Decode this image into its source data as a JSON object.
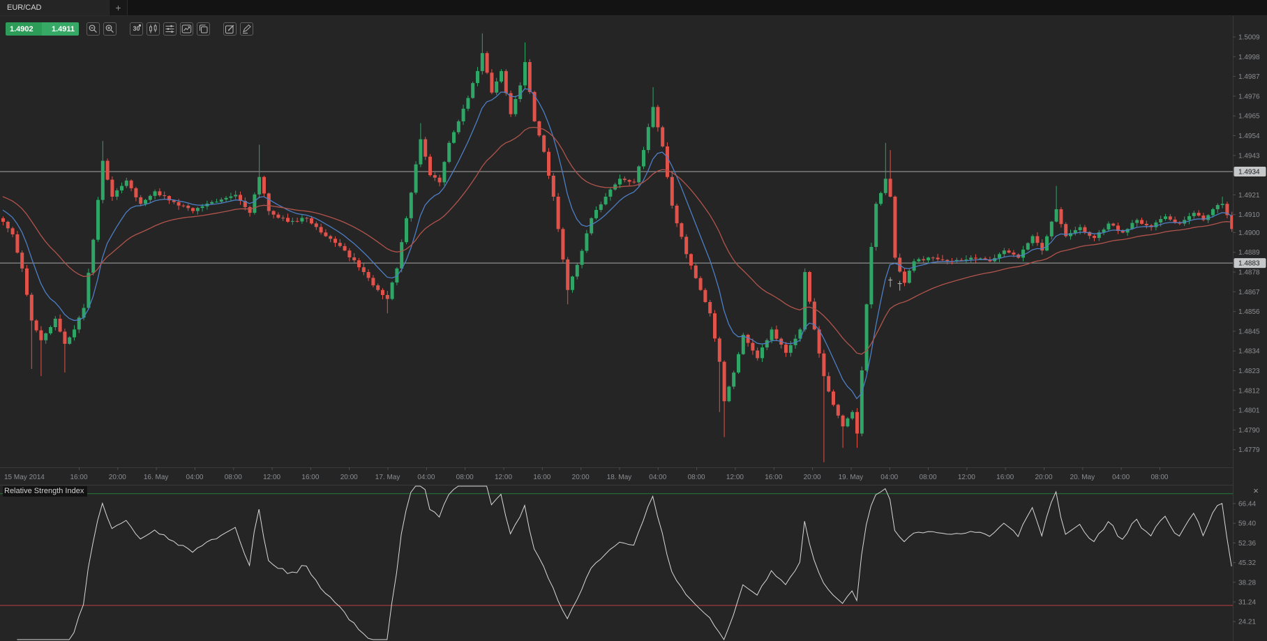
{
  "tabs": {
    "items": [
      {
        "label": "EUR/CAD",
        "active": true
      }
    ],
    "new_tab_label": "+"
  },
  "toolbar": {
    "bid": "1.4902",
    "ask": "1.4911",
    "timeframe_label": "30",
    "buttons": [
      "zoom-out",
      "zoom-in",
      "timeframe-30",
      "chart-style-candles",
      "indicator-settings",
      "chart-layout",
      "duplicate-chart",
      "edit-annotations",
      "draw-marker"
    ]
  },
  "rsi": {
    "title": "Relative Strength Index",
    "close_label": "×"
  },
  "chart_data": {
    "type": "candlestick",
    "symbol": "EUR/CAD",
    "timeframe_minutes": 30,
    "visible_range": {
      "start": "15 May 2014",
      "end": "20 May 2014 08:00"
    },
    "candle_count": 260,
    "colors": {
      "up": "#2fa566",
      "down": "#e0534a",
      "doji": "#a8a8a8",
      "ma_fast": "#4d7fc4",
      "ma_slow": "#b2544b",
      "price_line": "#c8c8c8",
      "price_label_bg": "#c6c8ca",
      "price_label_text": "#1b1c1d",
      "rsi_line": "#d9d9d9",
      "rsi_overbought": "#217a36",
      "rsi_oversold": "#c04040",
      "axis_text": "#8b8d90",
      "separator": "#3a3a3a",
      "background": "#252526"
    },
    "price_lines": [
      "1.4934",
      "1.4883"
    ],
    "price_axis_ticks": [
      "1.5009",
      "1.4998",
      "1.4987",
      "1.4976",
      "1.4965",
      "1.4954",
      "1.4943",
      "1.4921",
      "1.4910",
      "1.4900",
      "1.4889",
      "1.4878",
      "1.4867",
      "1.4856",
      "1.4845",
      "1.4834",
      "1.4823",
      "1.4812",
      "1.4801",
      "1.4790",
      "1.4779"
    ],
    "time_labels": [
      "15 May 2014",
      "16:00",
      "20:00",
      "16. May",
      "04:00",
      "08:00",
      "12:00",
      "16:00",
      "20:00",
      "17. May",
      "04:00",
      "08:00",
      "12:00",
      "16:00",
      "20:00",
      "18. May",
      "04:00",
      "08:00",
      "12:00",
      "16:00",
      "20:00",
      "19. May",
      "04:00",
      "08:00",
      "12:00",
      "16:00",
      "20:00",
      "20. May",
      "04:00",
      "08:00"
    ],
    "rsi_ticks": [
      "66.44",
      "59.40",
      "52.36",
      "45.32",
      "38.28",
      "31.24",
      "24.21"
    ],
    "rsi_levels": {
      "overbought": 70,
      "oversold": 30
    },
    "indicator": {
      "name": "Relative Strength Index",
      "period": 14
    },
    "overlays": [
      {
        "name": "fast-ma",
        "period": 10,
        "seed": 1.4914
      },
      {
        "name": "slow-ma",
        "period": 30,
        "seed": 1.4921
      }
    ],
    "close_path": [
      [
        0,
        1.4906
      ],
      [
        2,
        1.4899
      ],
      [
        4,
        1.488
      ],
      [
        6,
        1.4851
      ],
      [
        8,
        1.484
      ],
      [
        11,
        1.4852
      ],
      [
        13,
        1.4838
      ],
      [
        15,
        1.4846
      ],
      [
        17,
        1.4858
      ],
      [
        19,
        1.4896
      ],
      [
        21,
        1.494
      ],
      [
        23,
        1.492
      ],
      [
        26,
        1.4929
      ],
      [
        29,
        1.4916
      ],
      [
        32,
        1.4923
      ],
      [
        36,
        1.4917
      ],
      [
        40,
        1.4912
      ],
      [
        44,
        1.4917
      ],
      [
        49,
        1.4921
      ],
      [
        52,
        1.4911
      ],
      [
        54,
        1.4931
      ],
      [
        56,
        1.4912
      ],
      [
        60,
        1.4906
      ],
      [
        64,
        1.4908
      ],
      [
        68,
        1.4898
      ],
      [
        72,
        1.489
      ],
      [
        76,
        1.4878
      ],
      [
        79,
        1.4868
      ],
      [
        81,
        1.4863
      ],
      [
        83,
        1.488
      ],
      [
        85,
        1.4908
      ],
      [
        87,
        1.4938
      ],
      [
        88,
        1.4952
      ],
      [
        90,
        1.4932
      ],
      [
        92,
        1.4928
      ],
      [
        94,
        1.495
      ],
      [
        96,
        1.4962
      ],
      [
        98,
        1.4975
      ],
      [
        100,
        1.499
      ],
      [
        101,
        1.5
      ],
      [
        103,
        1.4978
      ],
      [
        105,
        1.499
      ],
      [
        107,
        1.4966
      ],
      [
        109,
        1.4982
      ],
      [
        110,
        1.4995
      ],
      [
        112,
        1.4962
      ],
      [
        114,
        1.4945
      ],
      [
        116,
        1.492
      ],
      [
        118,
        1.4885
      ],
      [
        119,
        1.4868
      ],
      [
        121,
        1.4882
      ],
      [
        124,
        1.4908
      ],
      [
        127,
        1.492
      ],
      [
        130,
        1.493
      ],
      [
        133,
        1.4928
      ],
      [
        135,
        1.4946
      ],
      [
        137,
        1.497
      ],
      [
        139,
        1.4948
      ],
      [
        141,
        1.4915
      ],
      [
        144,
        1.4888
      ],
      [
        147,
        1.4868
      ],
      [
        149,
        1.4855
      ],
      [
        151,
        1.4828
      ],
      [
        152,
        1.4806
      ],
      [
        154,
        1.4822
      ],
      [
        156,
        1.4843
      ],
      [
        159,
        1.483
      ],
      [
        162,
        1.4846
      ],
      [
        165,
        1.4833
      ],
      [
        168,
        1.4846
      ],
      [
        169,
        1.4878
      ],
      [
        171,
        1.4846
      ],
      [
        173,
        1.482
      ],
      [
        175,
        1.4804
      ],
      [
        177,
        1.4792
      ],
      [
        179,
        1.48
      ],
      [
        180,
        1.4788
      ],
      [
        182,
        1.486
      ],
      [
        183,
        1.4892
      ],
      [
        184,
        1.4916
      ],
      [
        185,
        1.4922
      ],
      [
        186,
        1.493
      ],
      [
        187,
        1.492
      ],
      [
        188,
        1.4886
      ],
      [
        190,
        1.4872
      ],
      [
        192,
        1.4884
      ],
      [
        196,
        1.4886
      ],
      [
        200,
        1.4884
      ],
      [
        204,
        1.4886
      ],
      [
        208,
        1.4884
      ],
      [
        211,
        1.489
      ],
      [
        214,
        1.4886
      ],
      [
        217,
        1.4898
      ],
      [
        219,
        1.489
      ],
      [
        222,
        1.4913
      ],
      [
        224,
        1.4898
      ],
      [
        227,
        1.4903
      ],
      [
        230,
        1.4897
      ],
      [
        233,
        1.4905
      ],
      [
        236,
        1.49
      ],
      [
        239,
        1.4907
      ],
      [
        242,
        1.4903
      ],
      [
        245,
        1.4909
      ],
      [
        248,
        1.4905
      ],
      [
        251,
        1.4911
      ],
      [
        253,
        1.4907
      ],
      [
        255,
        1.4913
      ],
      [
        257,
        1.4916
      ],
      [
        259,
        1.4902
      ]
    ],
    "wick_highs": [
      [
        21,
        1.4951
      ],
      [
        54,
        1.4949
      ],
      [
        88,
        1.4961
      ],
      [
        101,
        1.5011
      ],
      [
        110,
        1.5006
      ],
      [
        137,
        1.4981
      ],
      [
        186,
        1.495
      ],
      [
        187,
        1.4946
      ],
      [
        222,
        1.4926
      ],
      [
        257,
        1.492
      ]
    ],
    "wick_lows": [
      [
        6,
        1.4824
      ],
      [
        8,
        1.482
      ],
      [
        13,
        1.4822
      ],
      [
        81,
        1.4855
      ],
      [
        119,
        1.486
      ],
      [
        151,
        1.48
      ],
      [
        152,
        1.4786
      ],
      [
        173,
        1.4772
      ],
      [
        177,
        1.478
      ],
      [
        180,
        1.478
      ]
    ],
    "trade_markers": [
      {
        "index": 187,
        "price": 1.4872
      },
      {
        "index": 189,
        "price": 1.487
      }
    ]
  }
}
